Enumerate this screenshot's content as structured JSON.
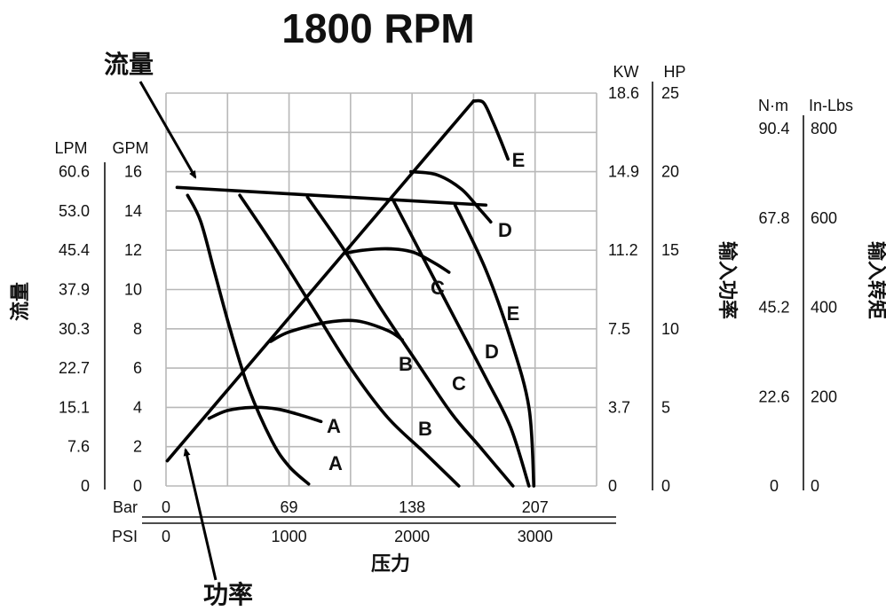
{
  "chart_data": {
    "type": "line",
    "title": "1800 RPM",
    "annotations": {
      "flow": "流量",
      "power": "功率"
    },
    "x_axis": {
      "label": "压力",
      "bar_label": "Bar",
      "psi_label": "PSI",
      "bar_ticks": [
        "0",
        "69",
        "138",
        "207"
      ],
      "psi_ticks": [
        "0",
        "1000",
        "2000",
        "3000"
      ],
      "xlim_psi": [
        0,
        3500
      ]
    },
    "flow_axis": {
      "label": "流量",
      "lpm_unit": "LPM",
      "gpm_unit": "GPM",
      "lpm_ticks": [
        "0",
        "7.6",
        "15.1",
        "22.7",
        "30.3",
        "37.9",
        "45.4",
        "53.0",
        "60.6"
      ],
      "gpm_ticks": [
        "0",
        "2",
        "4",
        "6",
        "8",
        "10",
        "12",
        "14",
        "16"
      ],
      "ylim_gpm": [
        0,
        20
      ]
    },
    "power_axis": {
      "label": "输入功率",
      "kw_unit": "KW",
      "hp_unit": "HP",
      "kw_ticks": [
        "0",
        "3.7",
        "7.5",
        "11.2",
        "14.9",
        "18.6"
      ],
      "hp_ticks": [
        "0",
        "5",
        "10",
        "15",
        "20",
        "25"
      ],
      "ylim_hp": [
        0,
        25
      ]
    },
    "torque_axis": {
      "label": "输入转矩",
      "nm_unit": "N·m",
      "inlbs_unit": "In-Lbs",
      "nm_ticks": [
        "0",
        "22.6",
        "45.2",
        "67.8",
        "90.4"
      ],
      "inlbs_ticks": [
        "0",
        "200",
        "400",
        "600",
        "800"
      ]
    },
    "flow_line": {
      "name": "流量",
      "x_psi": [
        90,
        2600
      ],
      "y_gpm": [
        15.2,
        14.3
      ]
    },
    "power_line": {
      "name": "功率",
      "x_psi": [
        10,
        2500
      ],
      "y_hp": [
        1.6,
        24.5
      ]
    },
    "flow_curves": [
      {
        "name": "A",
        "x_psi": [
          175,
          280,
          390,
          520,
          670,
          860,
          1000,
          1160
        ],
        "y_gpm": [
          14.8,
          13.5,
          11.0,
          8.0,
          5.0,
          2.3,
          1.0,
          0.1
        ]
      },
      {
        "name": "B",
        "x_psi": [
          600,
          900,
          1200,
          1500,
          1800,
          2100,
          2380
        ],
        "y_gpm": [
          14.8,
          12.0,
          9.0,
          6.0,
          3.5,
          1.7,
          0.0
        ]
      },
      {
        "name": "C",
        "x_psi": [
          1150,
          1450,
          1750,
          2050,
          2320,
          2550,
          2820
        ],
        "y_gpm": [
          14.7,
          12.0,
          9.0,
          6.2,
          3.7,
          2.0,
          0.0
        ]
      },
      {
        "name": "D",
        "x_psi": [
          1850,
          2100,
          2350,
          2600,
          2800,
          2950
        ],
        "y_gpm": [
          14.5,
          11.5,
          8.5,
          5.5,
          3.0,
          0.0
        ]
      },
      {
        "name": "E",
        "x_psi": [
          2350,
          2600,
          2800,
          2950,
          2990
        ],
        "y_gpm": [
          14.3,
          11.0,
          7.5,
          4.0,
          0.0
        ]
      }
    ],
    "power_curves": [
      {
        "name": "A",
        "x_psi": [
          350,
          500,
          700,
          900,
          1100,
          1260
        ],
        "y_hp": [
          4.3,
          4.8,
          5.0,
          4.9,
          4.5,
          4.1
        ]
      },
      {
        "name": "B",
        "x_psi": [
          850,
          1000,
          1300,
          1550,
          1800,
          1920
        ],
        "y_hp": [
          9.2,
          9.8,
          10.4,
          10.5,
          9.9,
          9.3
        ]
      },
      {
        "name": "C",
        "x_psi": [
          1450,
          1600,
          1800,
          2000,
          2180,
          2300
        ],
        "y_hp": [
          14.8,
          15.0,
          15.1,
          14.9,
          14.2,
          13.6
        ]
      },
      {
        "name": "D",
        "x_psi": [
          1990,
          2200,
          2400,
          2550,
          2640
        ],
        "y_hp": [
          20.0,
          19.8,
          18.9,
          17.6,
          16.8
        ]
      },
      {
        "name": "E",
        "x_psi": [
          2500,
          2580,
          2650,
          2720,
          2780
        ],
        "y_hp": [
          24.5,
          24.4,
          23.3,
          22.0,
          20.8
        ]
      }
    ]
  }
}
